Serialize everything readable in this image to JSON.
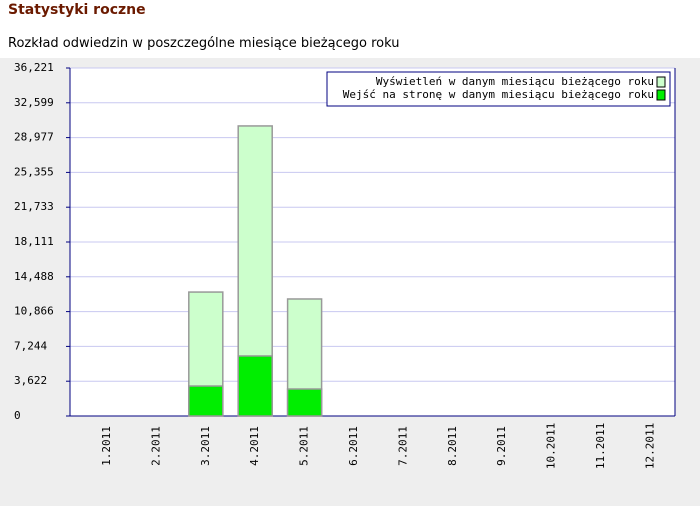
{
  "header": {
    "title": "Statystyki roczne"
  },
  "chart_data": {
    "type": "bar",
    "subtitle": "Rozkład odwiedzin w poszczególne miesiące bieżącego roku",
    "categories": [
      "1.2011",
      "2.2011",
      "3.2011",
      "4.2011",
      "5.2011",
      "6.2011",
      "7.2011",
      "8.2011",
      "9.2011",
      "10.2011",
      "11.2011",
      "12.2011"
    ],
    "series": [
      {
        "name": "Wyświetleń w danym miesiącu bieżącego roku",
        "color": "#ccffcc",
        "values": [
          0,
          0,
          12900,
          30190,
          12180,
          0,
          0,
          0,
          0,
          0,
          0,
          0
        ]
      },
      {
        "name": "Wejść na stronę w danym miesiącu bieżącego roku",
        "color": "#00ee00",
        "values": [
          0,
          0,
          3120,
          6250,
          2810,
          0,
          0,
          0,
          0,
          0,
          0,
          0
        ]
      }
    ],
    "ylim": [
      0,
      36221
    ],
    "yticks": [
      0,
      {
        "value": 3622,
        "label": "3,622"
      },
      {
        "value": 7244,
        "label": "7,244"
      },
      {
        "value": 10866,
        "label": "10,866"
      },
      {
        "value": 14488,
        "label": "14,488"
      },
      {
        "value": 18111,
        "label": "18,111"
      },
      {
        "value": 21733,
        "label": "21,733"
      },
      {
        "value": 25355,
        "label": "25,355"
      },
      {
        "value": 28977,
        "label": "28,977"
      },
      {
        "value": 32599,
        "label": "32,599"
      },
      {
        "value": 36221,
        "label": "36,221"
      }
    ],
    "grid": true,
    "legend": "top-right"
  }
}
